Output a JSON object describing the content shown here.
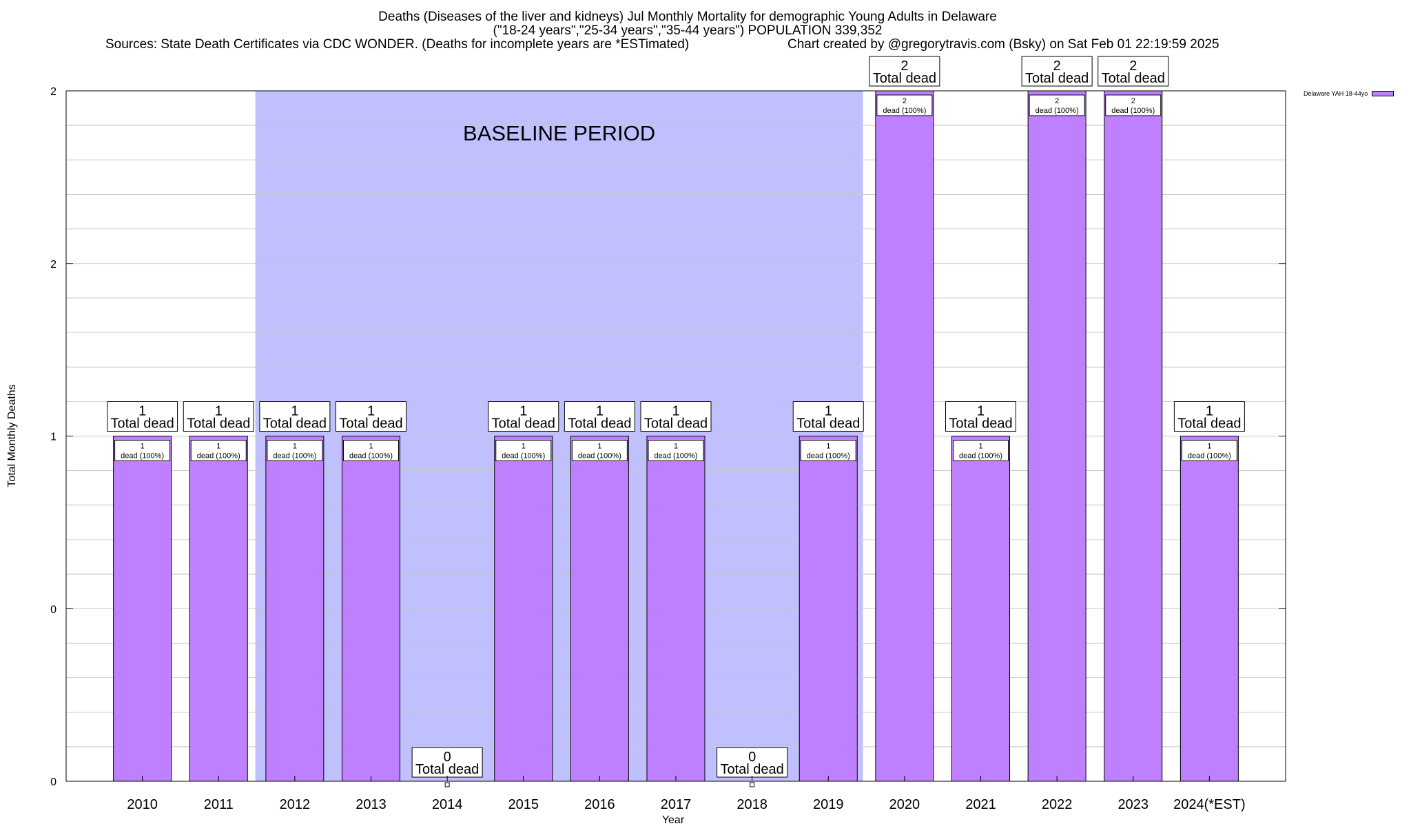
{
  "title": {
    "line1": "Deaths (Diseases of the liver and kidneys) Jul Monthly Mortality for demographic Young Adults in Delaware",
    "line2": "(\"18-24 years\",\"25-34 years\",\"35-44 years\") POPULATION 339,352",
    "line3_left": "Sources: State Death Certificates via CDC WONDER. (Deaths for incomplete years are *ESTimated)",
    "line3_right": "Chart created by @gregorytravis.com (Bsky) on Sat Feb 01 22:19:59 2025"
  },
  "legend": {
    "label": "Delaware YAH 18-44yo",
    "color": "#bf80ff"
  },
  "colors": {
    "bar": "#bf80ff",
    "baseline": "#c0c0ff",
    "grid": "#c8c8c8"
  },
  "chart_data": {
    "type": "bar",
    "title": "Deaths (Diseases of the liver and kidneys) Jul Monthly Mortality for demographic Young Adults in Delaware",
    "xlabel": "Year",
    "ylabel": "Total Monthly Deaths",
    "ylim": [
      0,
      2
    ],
    "y_tick_labels": [
      "0",
      "0",
      "1",
      "2",
      "2"
    ],
    "y_tick_values": [
      0,
      0.5,
      1,
      1.5,
      2
    ],
    "grid": true,
    "legend_position": "top-right",
    "baseline_period": {
      "label": "BASELINE PERIOD",
      "from": "2012",
      "to": "2019"
    },
    "categories": [
      "2010",
      "2011",
      "2012",
      "2013",
      "2014",
      "2015",
      "2016",
      "2017",
      "2018",
      "2019",
      "2020",
      "2021",
      "2022",
      "2023",
      "2024(*EST)"
    ],
    "series": [
      {
        "name": "Delaware YAH 18-44yo",
        "values": [
          1,
          1,
          1,
          1,
          0,
          1,
          1,
          1,
          0,
          1,
          2,
          1,
          2,
          2,
          1
        ]
      }
    ],
    "total_label": "Total dead",
    "inner_label_suffix": "dead (100%)"
  }
}
